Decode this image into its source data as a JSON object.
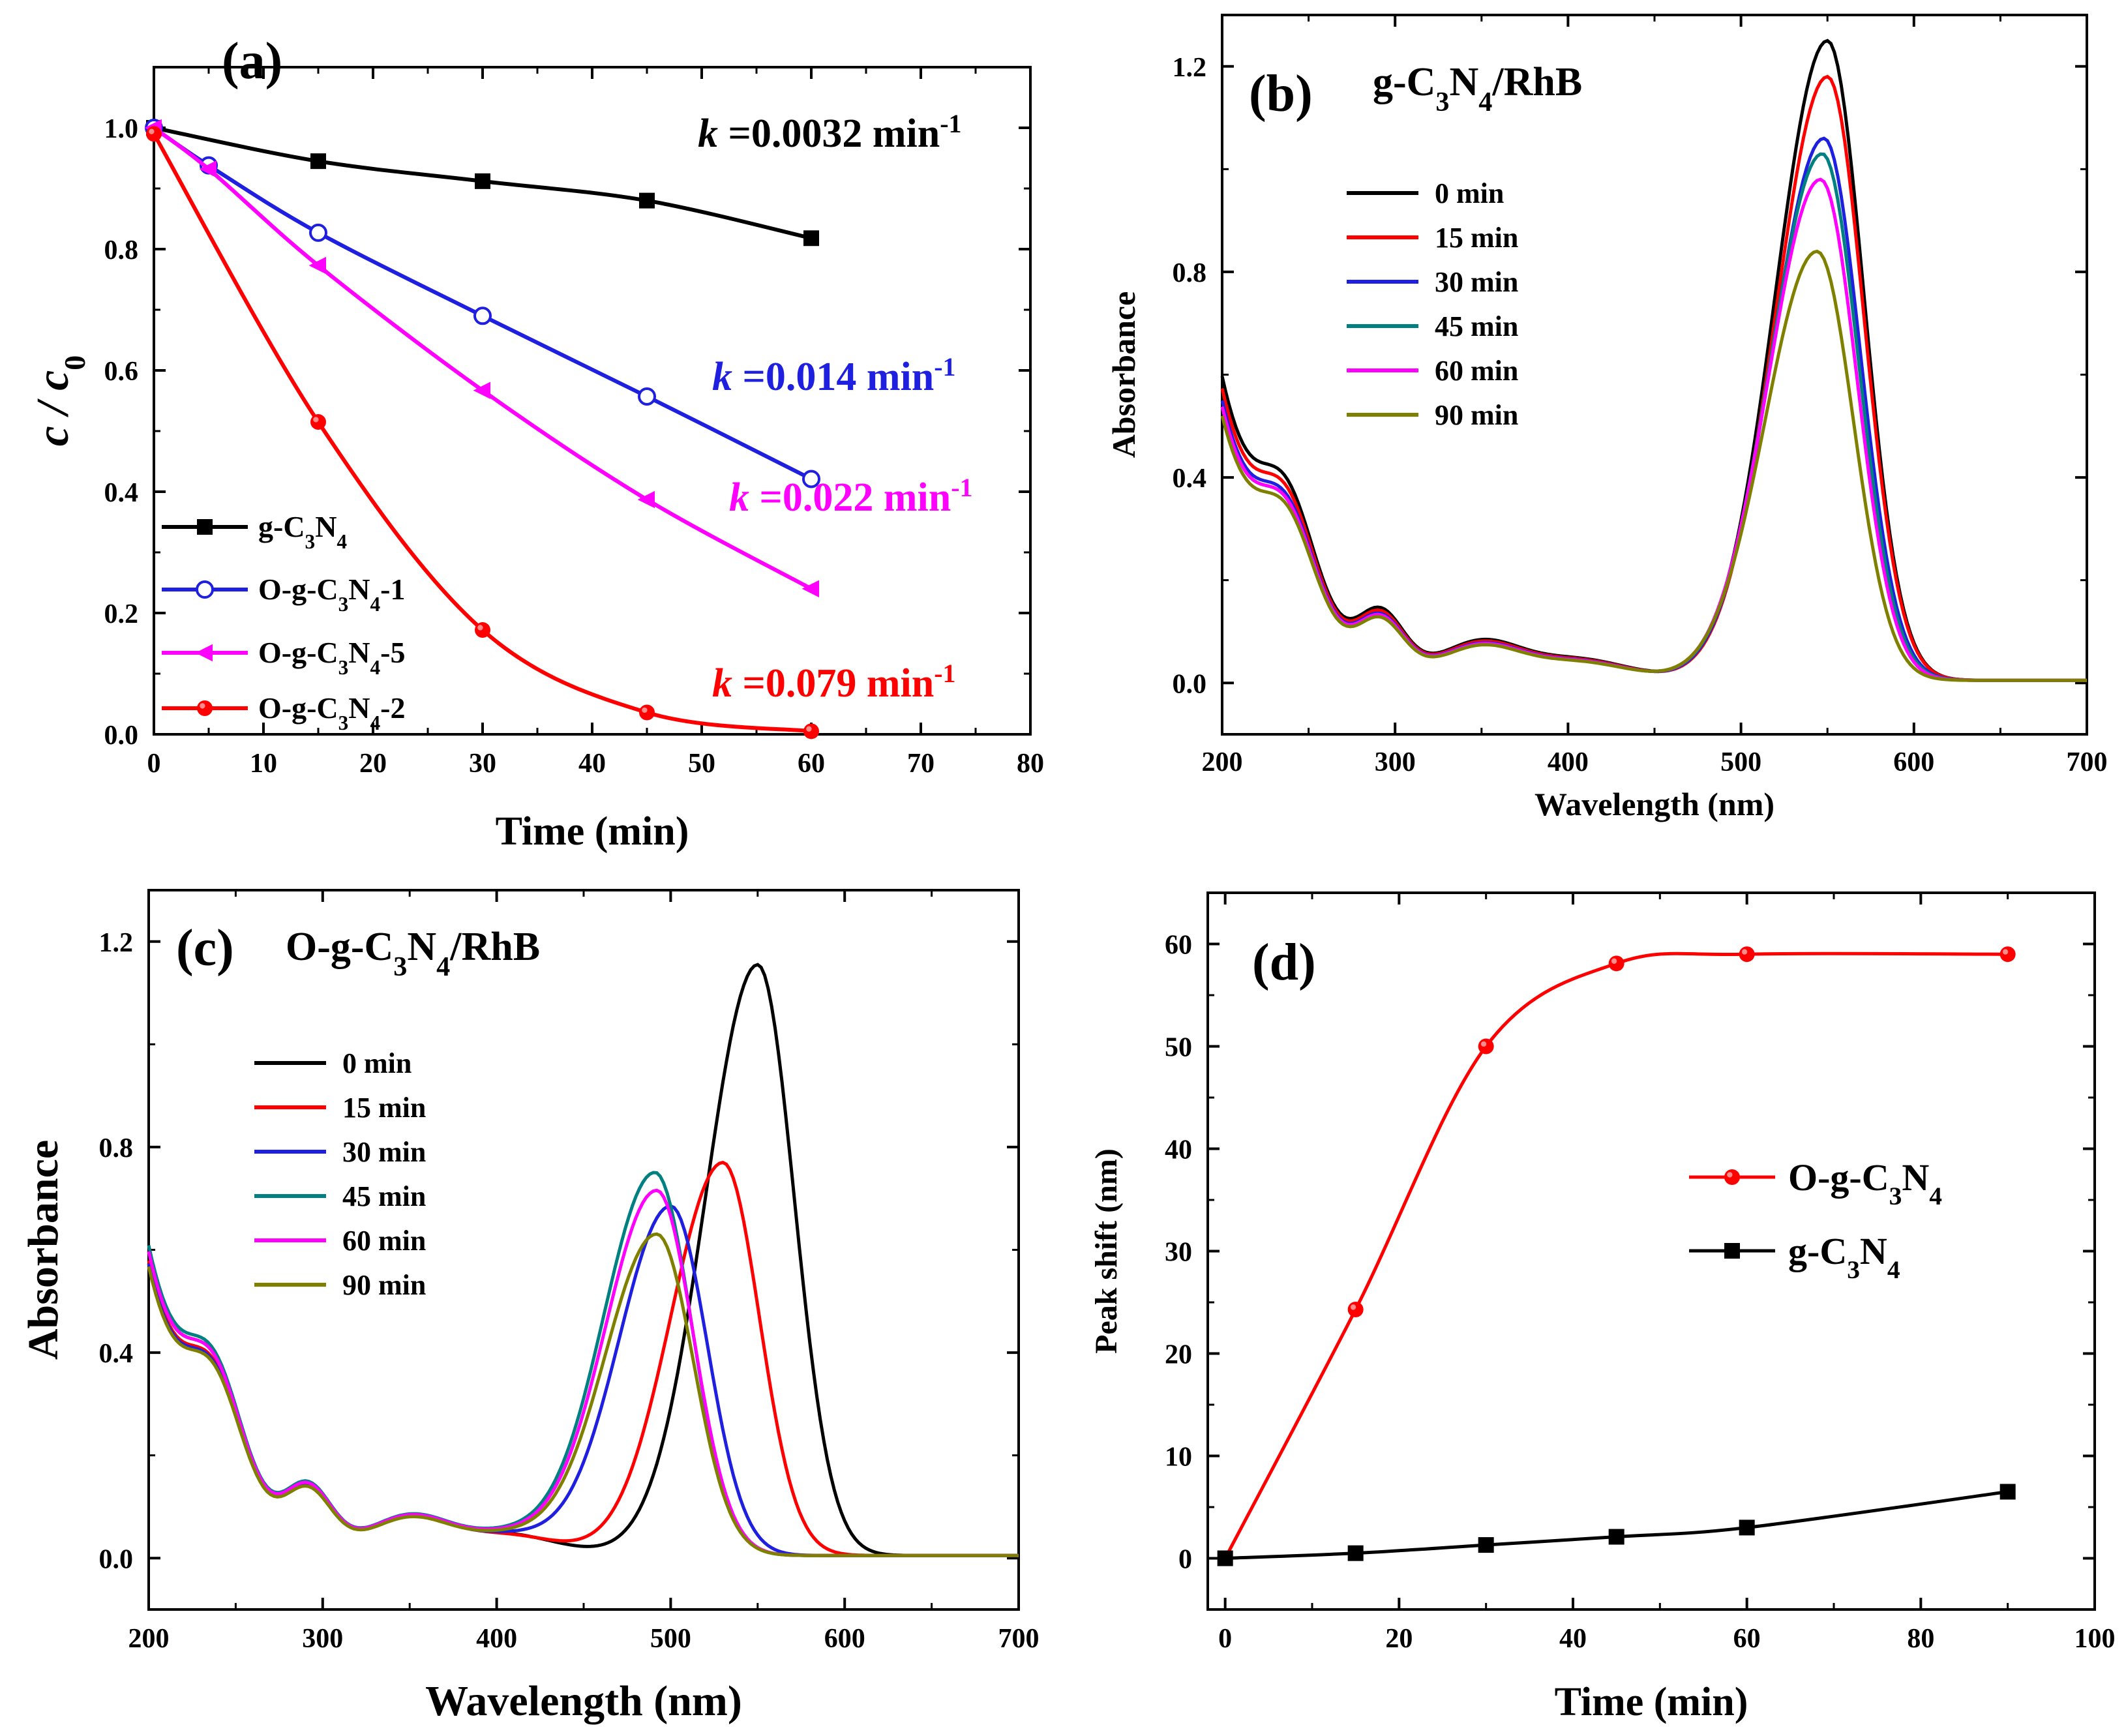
{
  "figure": {
    "panels": [
      "a",
      "b",
      "c",
      "d"
    ]
  },
  "chart_data": [
    {
      "panel": "a",
      "panel_label": "(a)",
      "type": "line",
      "title": "",
      "xlabel": "Time (min)",
      "ylabel": "c / c0",
      "xlim": [
        0,
        80
      ],
      "ylim": [
        0,
        1.1
      ],
      "xticks": [
        0,
        10,
        20,
        30,
        40,
        50,
        60,
        70,
        80
      ],
      "yticks": [
        0.0,
        0.2,
        0.4,
        0.6,
        0.8,
        1.0
      ],
      "grid": false,
      "legend_position": "bottom-left",
      "series": [
        {
          "name": "g-C3N4",
          "color": "#000000",
          "marker": "square-filled",
          "x": [
            0,
            15,
            30,
            45,
            60
          ],
          "y": [
            1.0,
            0.945,
            0.912,
            0.88,
            0.818
          ],
          "rate_label": {
            "k": "k",
            "value": "=0.0032 min",
            "exp": "-1"
          }
        },
        {
          "name": "O-g-C3N4-1",
          "color": "#1f1fe0",
          "marker": "circle-open",
          "x": [
            0,
            5,
            15,
            30,
            45,
            60
          ],
          "y": [
            1.0,
            0.938,
            0.827,
            0.69,
            0.557,
            0.421
          ],
          "rate_label": {
            "k": "k",
            "value": "=0.014 min",
            "exp": "-1"
          }
        },
        {
          "name": "O-g-C3N4-5",
          "color": "#ff00ff",
          "marker": "triangle-left-filled",
          "x": [
            0,
            5,
            15,
            30,
            45,
            60
          ],
          "y": [
            1.0,
            0.932,
            0.773,
            0.567,
            0.387,
            0.24
          ],
          "rate_label": {
            "k": "k",
            "value": "=0.022 min",
            "exp": "-1"
          }
        },
        {
          "name": "O-g-C3N4-2",
          "color": "#ff0000",
          "marker": "circle-filled",
          "x": [
            0,
            15,
            30,
            45,
            60
          ],
          "y": [
            0.99,
            0.515,
            0.172,
            0.036,
            0.005
          ],
          "rate_label": {
            "k": "k",
            "value": "=0.079 min",
            "exp": "-1"
          }
        }
      ]
    },
    {
      "panel": "b",
      "panel_label": "(b)",
      "panel_title": "g-C3N4/RhB",
      "type": "line",
      "xlabel": "Wavelength (nm)",
      "ylabel": "Absorbance",
      "xlim": [
        200,
        700
      ],
      "ylim": [
        -0.1,
        1.3
      ],
      "xticks": [
        200,
        300,
        400,
        500,
        600,
        700
      ],
      "yticks": [
        0.0,
        0.4,
        0.8,
        1.2
      ],
      "grid": false,
      "legend_position": "top-left",
      "series": [
        {
          "name": "0 min",
          "color": "#000000",
          "peak_x": 550,
          "peak_y": 1.245
        },
        {
          "name": "15 min",
          "color": "#ff0000",
          "peak_x": 550,
          "peak_y": 1.175
        },
        {
          "name": "30 min",
          "color": "#1f1fe0",
          "peak_x": 548,
          "peak_y": 1.055
        },
        {
          "name": "45 min",
          "color": "#008080",
          "peak_x": 547,
          "peak_y": 1.025
        },
        {
          "name": "60 min",
          "color": "#ff00ff",
          "peak_x": 546,
          "peak_y": 0.975
        },
        {
          "name": "90 min",
          "color": "#808000",
          "peak_x": 544,
          "peak_y": 0.835
        }
      ]
    },
    {
      "panel": "c",
      "panel_label": "(c)",
      "panel_title": "O-g-C3N4/RhB",
      "type": "line",
      "xlabel": "Wavelength (nm)",
      "ylabel": "Absorbance",
      "xlim": [
        200,
        700
      ],
      "ylim": [
        -0.1,
        1.3
      ],
      "xticks": [
        200,
        300,
        400,
        500,
        600,
        700
      ],
      "yticks": [
        0.0,
        0.4,
        0.8,
        1.2
      ],
      "grid": false,
      "legend_position": "middle-left",
      "series": [
        {
          "name": "0 min",
          "color": "#000000",
          "peak_x": 550,
          "peak_y": 1.15
        },
        {
          "name": "15 min",
          "color": "#ff0000",
          "peak_x": 530,
          "peak_y": 0.765
        },
        {
          "name": "30 min",
          "color": "#1f1fe0",
          "peak_x": 500,
          "peak_y": 0.68
        },
        {
          "name": "45 min",
          "color": "#008080",
          "peak_x": 491,
          "peak_y": 0.745
        },
        {
          "name": "60 min",
          "color": "#ff00ff",
          "peak_x": 492,
          "peak_y": 0.71
        },
        {
          "name": "90 min",
          "color": "#808000",
          "peak_x": 492,
          "peak_y": 0.625
        }
      ]
    },
    {
      "panel": "d",
      "panel_label": "(d)",
      "type": "line",
      "xlabel": "Time (min)",
      "ylabel": "Peak shift (nm)",
      "xlim": [
        -2,
        100
      ],
      "ylim": [
        -5,
        65
      ],
      "xticks": [
        0,
        20,
        40,
        60,
        80,
        100
      ],
      "yticks": [
        0,
        10,
        20,
        30,
        40,
        50,
        60
      ],
      "grid": false,
      "legend_position": "middle-right",
      "series": [
        {
          "name": "O-g-C3N4",
          "color": "#ff0000",
          "marker": "circle-filled",
          "x": [
            0,
            15,
            30,
            45,
            60,
            90
          ],
          "y": [
            0,
            24.3,
            50.0,
            58.1,
            59.0,
            59.0
          ]
        },
        {
          "name": "g-C3N4",
          "color": "#000000",
          "marker": "square-filled",
          "x": [
            0,
            15,
            30,
            45,
            60,
            90
          ],
          "y": [
            0,
            0.5,
            1.3,
            2.1,
            3.0,
            6.5
          ]
        }
      ]
    }
  ]
}
